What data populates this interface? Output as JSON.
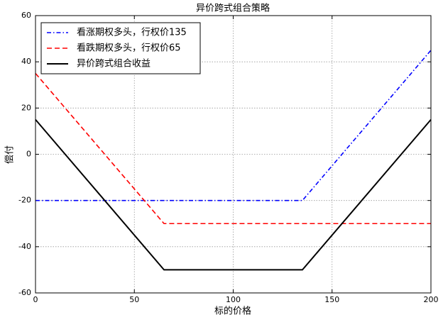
{
  "chart_data": {
    "type": "line",
    "title": "异价跨式组合策略",
    "x_label": "标的价格",
    "y_label": "偿付",
    "x": [
      0,
      65,
      135,
      200
    ],
    "series": [
      {
        "name": "看涨期权多头，行权价135",
        "color": "#0000ff",
        "style": "dashdot",
        "values": [
          -20,
          -20,
          -20,
          45
        ]
      },
      {
        "name": "看跌期权多头，行权价65",
        "color": "#ff0000",
        "style": "dashed",
        "values": [
          35,
          -30,
          -30,
          -30
        ]
      },
      {
        "name": "异价跨式组合收益",
        "color": "#000000",
        "style": "solid",
        "values": [
          15,
          -50,
          -50,
          15
        ]
      }
    ],
    "xlim": [
      0,
      200
    ],
    "xticks": [
      0,
      50,
      100,
      150,
      200
    ],
    "ylim": [
      -60,
      60
    ],
    "yticks": [
      -60,
      -40,
      -20,
      0,
      20,
      40,
      60
    ],
    "grid": true,
    "legend": "upper left"
  }
}
